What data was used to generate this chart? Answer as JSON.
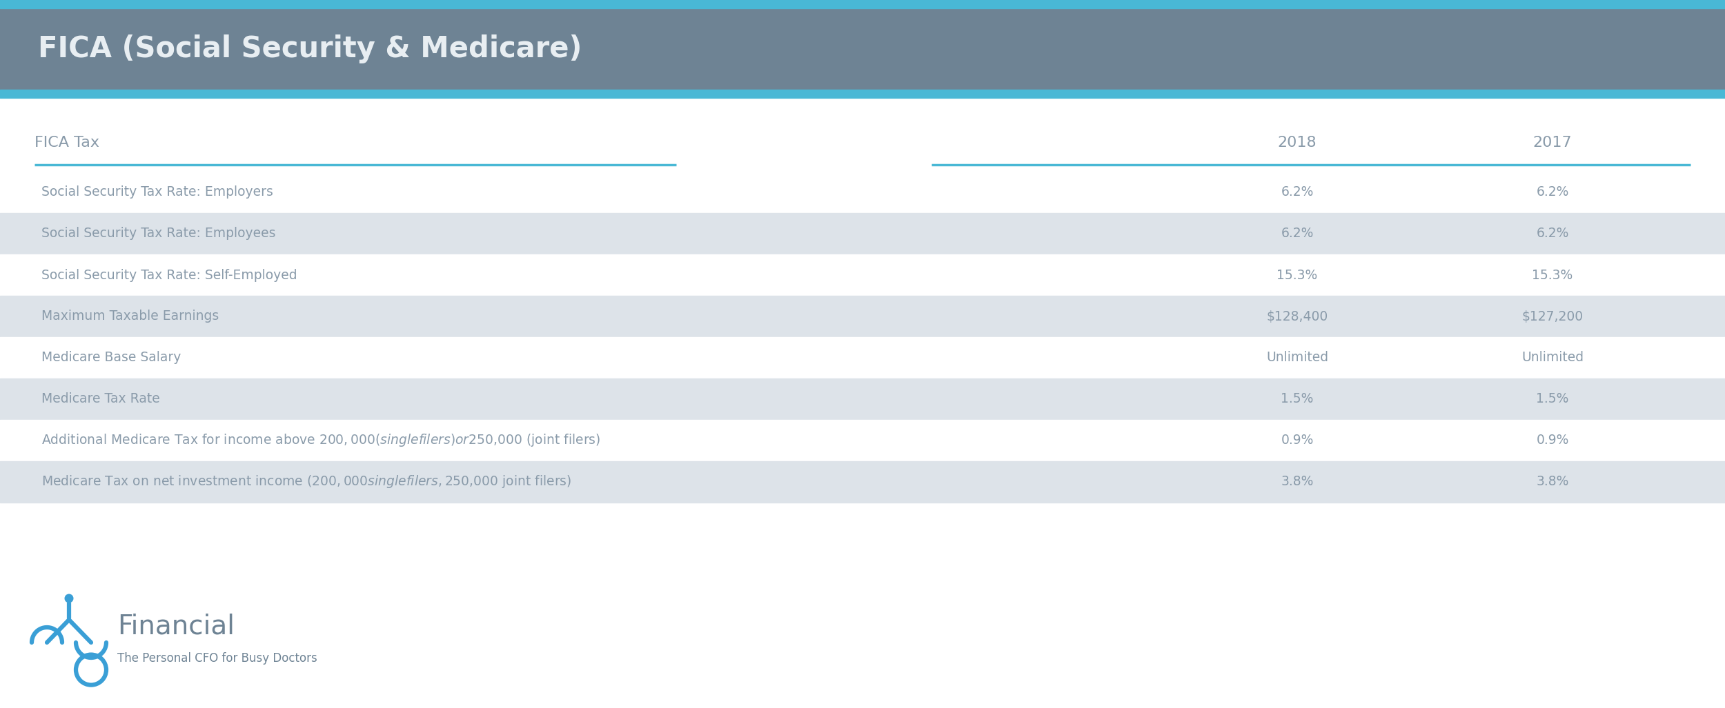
{
  "title": "FICA (Social Security & Medicare)",
  "title_bg_color": "#6e8394",
  "title_accent_color": "#49b8d5",
  "title_text_color": "#e8eef2",
  "header_row": [
    "FICA Tax",
    "2018",
    "2017"
  ],
  "header_text_color": "#8a9baa",
  "header_line_color": "#49b8d5",
  "rows": [
    [
      "Social Security Tax Rate: Employers",
      "6.2%",
      "6.2%"
    ],
    [
      "Social Security Tax Rate: Employees",
      "6.2%",
      "6.2%"
    ],
    [
      "Social Security Tax Rate: Self-Employed",
      "15.3%",
      "15.3%"
    ],
    [
      "Maximum Taxable Earnings",
      "$128,400",
      "$127,200"
    ],
    [
      "Medicare Base Salary",
      "Unlimited",
      "Unlimited"
    ],
    [
      "Medicare Tax Rate",
      "1.5%",
      "1.5%"
    ],
    [
      "Additional Medicare Tax for income above $200,000 (single filers) or $250,000 (joint filers)",
      "0.9%",
      "0.9%"
    ],
    [
      "Medicare Tax on net investment income ($200,000 single filers, $250,000 joint filers)",
      "3.8%",
      "3.8%"
    ]
  ],
  "row_bg_colors": [
    "#ffffff",
    "#dde3e9",
    "#ffffff",
    "#dde3e9",
    "#ffffff",
    "#dde3e9",
    "#ffffff",
    "#dde3e9"
  ],
  "row_text_color": "#8a9baa",
  "bg_color": "#ffffff",
  "logo_text": "Financial",
  "logo_subtext": "The Personal CFO for Busy Doctors",
  "logo_color": "#3a9fd6",
  "logo_text_color": "#6e8394"
}
